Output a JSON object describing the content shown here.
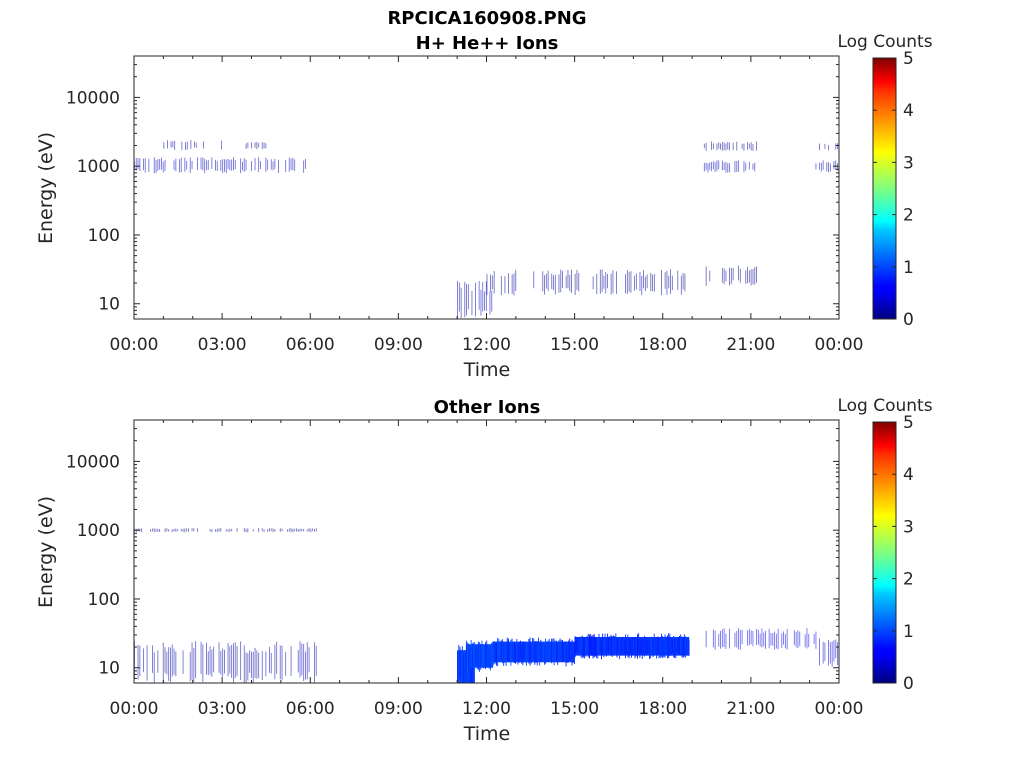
{
  "figure": {
    "title": "RPCICA160908.PNG"
  },
  "chart_data": [
    {
      "type": "heatmap",
      "title": "H+ He++ Ions",
      "xlabel": "Time",
      "ylabel": "Energy (eV)",
      "x_ticks": [
        "00:00",
        "03:00",
        "06:00",
        "09:00",
        "12:00",
        "15:00",
        "18:00",
        "21:00",
        "00:00"
      ],
      "xlim_hours": [
        0,
        24
      ],
      "y_scale": "log",
      "ylim": [
        6,
        40000
      ],
      "y_ticks": [
        10,
        100,
        1000,
        10000
      ],
      "y_tick_labels": [
        "10",
        "100",
        "1000",
        "10000"
      ],
      "colorbar": {
        "label": "Log Counts",
        "range": [
          0,
          5
        ],
        "ticks": [
          "0",
          "1",
          "2",
          "3",
          "4",
          "5"
        ],
        "colormap": "jet"
      },
      "regions": [
        {
          "t_start": 0.0,
          "t_end": 6.2,
          "e_low": 850,
          "e_high": 1250,
          "log_counts": 0.3
        },
        {
          "t_start": 1.0,
          "t_end": 3.0,
          "e_low": 1800,
          "e_high": 2300,
          "log_counts": 0.2
        },
        {
          "t_start": 3.8,
          "t_end": 4.5,
          "e_low": 1800,
          "e_high": 2200,
          "log_counts": 0.15
        },
        {
          "t_start": 11.0,
          "t_end": 12.2,
          "e_low": 7,
          "e_high": 18,
          "log_counts": 0.25
        },
        {
          "t_start": 12.0,
          "t_end": 18.8,
          "e_low": 15,
          "e_high": 28,
          "log_counts": 0.15
        },
        {
          "t_start": 19.4,
          "t_end": 21.2,
          "e_low": 1750,
          "e_high": 2200,
          "log_counts": 0.15
        },
        {
          "t_start": 19.4,
          "t_end": 21.2,
          "e_low": 850,
          "e_high": 1150,
          "log_counts": 0.3
        },
        {
          "t_start": 19.4,
          "t_end": 21.2,
          "e_low": 20,
          "e_high": 33,
          "log_counts": 0.12
        },
        {
          "t_start": 23.2,
          "t_end": 24.0,
          "e_low": 850,
          "e_high": 1150,
          "log_counts": 0.25
        },
        {
          "t_start": 23.2,
          "t_end": 24.0,
          "e_low": 1750,
          "e_high": 2100,
          "log_counts": 0.15
        }
      ]
    },
    {
      "type": "heatmap",
      "title": "Other Ions",
      "xlabel": "Time",
      "ylabel": "Energy (eV)",
      "x_ticks": [
        "00:00",
        "03:00",
        "06:00",
        "09:00",
        "12:00",
        "15:00",
        "18:00",
        "21:00",
        "00:00"
      ],
      "xlim_hours": [
        0,
        24
      ],
      "y_scale": "log",
      "ylim": [
        6,
        40000
      ],
      "y_ticks": [
        10,
        100,
        1000,
        10000
      ],
      "y_tick_labels": [
        "10",
        "100",
        "1000",
        "10000"
      ],
      "colorbar": {
        "label": "Log Counts",
        "range": [
          0,
          5
        ],
        "ticks": [
          "0",
          "1",
          "2",
          "3",
          "4",
          "5"
        ],
        "colormap": "jet"
      },
      "regions": [
        {
          "t_start": 0.0,
          "t_end": 6.2,
          "e_low": 950,
          "e_high": 1050,
          "log_counts": 0.1
        },
        {
          "t_start": 0.0,
          "t_end": 6.2,
          "e_low": 7,
          "e_high": 20,
          "log_counts": 0.2
        },
        {
          "t_start": 11.0,
          "t_end": 11.6,
          "e_low": 6,
          "e_high": 18,
          "log_counts": 0.9
        },
        {
          "t_start": 11.3,
          "t_end": 12.2,
          "e_low": 10,
          "e_high": 22,
          "log_counts": 0.95
        },
        {
          "t_start": 12.2,
          "t_end": 15.0,
          "e_low": 12,
          "e_high": 24,
          "log_counts": 0.9
        },
        {
          "t_start": 15.0,
          "t_end": 18.9,
          "e_low": 15,
          "e_high": 28,
          "log_counts": 0.85
        },
        {
          "t_start": 19.4,
          "t_end": 23.2,
          "e_low": 20,
          "e_high": 34,
          "log_counts": 0.5
        },
        {
          "t_start": 23.2,
          "t_end": 24.0,
          "e_low": 12,
          "e_high": 25,
          "log_counts": 0.4
        }
      ]
    }
  ]
}
